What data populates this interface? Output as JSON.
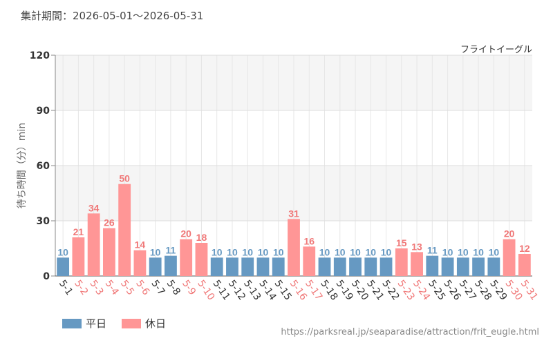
{
  "header": {
    "period": "集計期間：2026-05-01～2026-05-31",
    "attraction": "フライトイーグル"
  },
  "footer": {
    "source": "https://parksreal.jp/seaparadise/attraction/frit_eugle.html"
  },
  "colors": {
    "weekday": "#6699c2",
    "holiday": "#ff9696",
    "weekday_label": "#6699c2",
    "holiday_label": "#f07878",
    "band": "#f5f5f5",
    "grid": "#e6e6e6"
  },
  "chart_data": {
    "type": "bar",
    "ylabel": "待ち時間（分）min",
    "ylim": [
      0,
      120
    ],
    "yticks": [
      0,
      30,
      60,
      90,
      120
    ],
    "grid": true,
    "legend_position": "bottom-left",
    "legend": [
      {
        "name": "平日",
        "key": "weekday"
      },
      {
        "name": "休日",
        "key": "holiday"
      }
    ],
    "categories": [
      "5-1",
      "5-2",
      "5-3",
      "5-4",
      "5-5",
      "5-6",
      "5-7",
      "5-8",
      "5-9",
      "5-10",
      "5-11",
      "5-12",
      "5-13",
      "5-14",
      "5-15",
      "5-16",
      "5-17",
      "5-18",
      "5-19",
      "5-20",
      "5-21",
      "5-22",
      "5-23",
      "5-24",
      "5-25",
      "5-26",
      "5-27",
      "5-28",
      "5-29",
      "5-30",
      "5-31"
    ],
    "values": [
      10,
      21,
      34,
      26,
      50,
      14,
      10,
      11,
      20,
      18,
      10,
      10,
      10,
      10,
      10,
      31,
      16,
      10,
      10,
      10,
      10,
      10,
      15,
      13,
      11,
      10,
      10,
      10,
      10,
      20,
      12
    ],
    "day_type": [
      "weekday",
      "holiday",
      "holiday",
      "holiday",
      "holiday",
      "holiday",
      "weekday",
      "weekday",
      "holiday",
      "holiday",
      "weekday",
      "weekday",
      "weekday",
      "weekday",
      "weekday",
      "holiday",
      "holiday",
      "weekday",
      "weekday",
      "weekday",
      "weekday",
      "weekday",
      "holiday",
      "holiday",
      "weekday",
      "weekday",
      "weekday",
      "weekday",
      "weekday",
      "holiday",
      "holiday"
    ]
  }
}
